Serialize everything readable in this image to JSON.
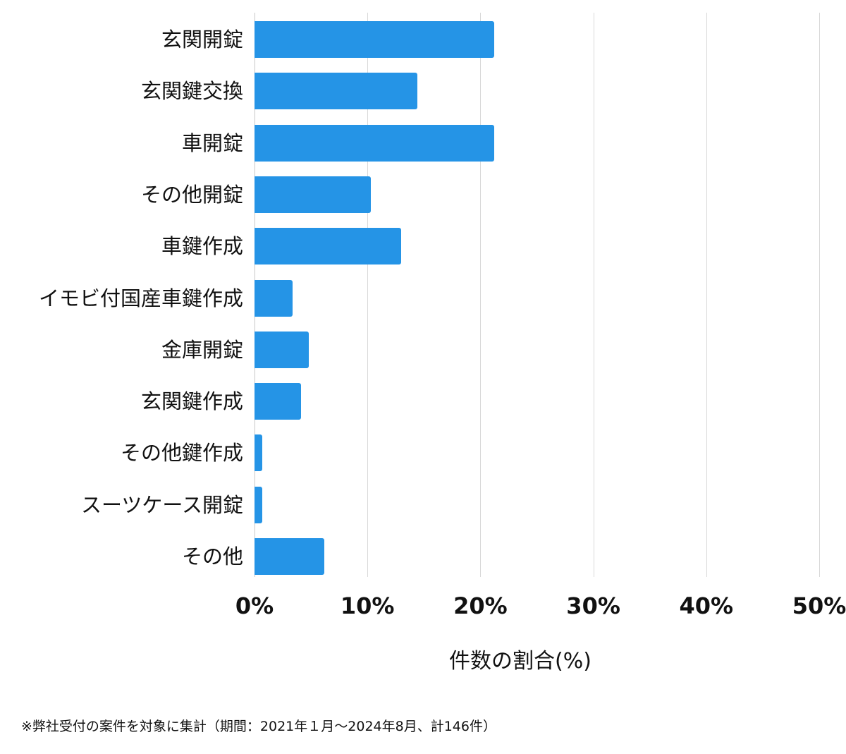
{
  "chart_data": {
    "type": "bar",
    "orientation": "horizontal",
    "categories": [
      "玄関開錠",
      "玄関鍵交換",
      "車開錠",
      "その他開錠",
      "車鍵作成",
      "イモビ付国産車鍵作成",
      "金庫開錠",
      "玄関鍵作成",
      "その他鍵作成",
      "スーツケース開錠",
      "その他"
    ],
    "values": [
      21.2,
      14.4,
      21.2,
      10.3,
      13.0,
      3.4,
      4.8,
      4.1,
      0.7,
      0.7,
      6.2
    ],
    "xlabel": "件数の割合(%)",
    "ylabel": "",
    "xlim": [
      0,
      50
    ],
    "xticks": [
      "0%",
      "10%",
      "20%",
      "30%",
      "40%",
      "50%"
    ],
    "grid": true,
    "bar_color": "#2594e6",
    "title": ""
  },
  "footnote": "※弊社受付の案件を対象に集計（期間：2021年１月〜2024年8月、計146件）"
}
